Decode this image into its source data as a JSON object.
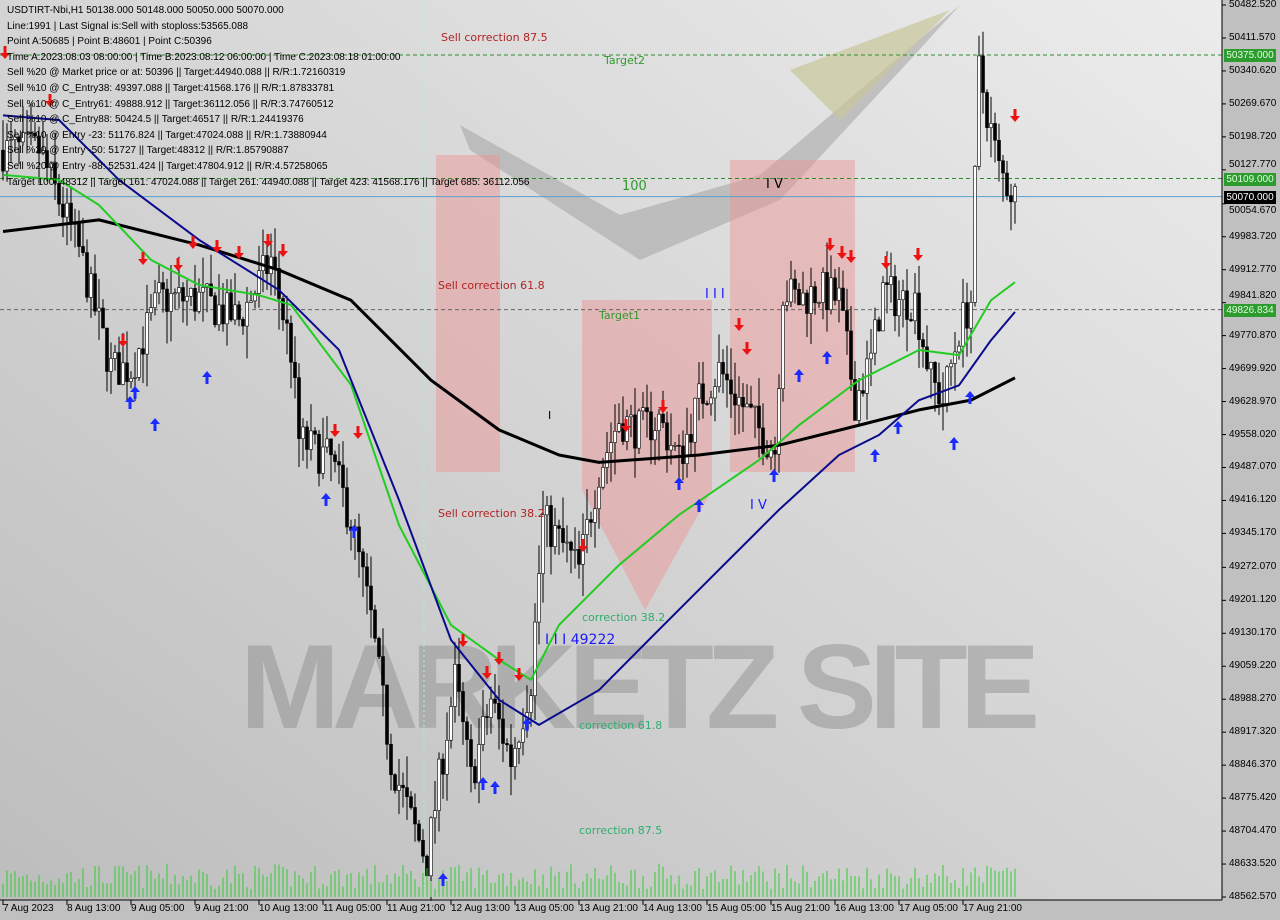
{
  "header": {
    "symbol_line": "USDTIRT-Nbi,H1  50138.000 50148.000 50050.000 50070.000",
    "lines": [
      "Line:1991 | Last Signal is:Sell with stoploss:53565.088",
      "Point A:50685 | Point B:48601 | Point C:50396",
      "Time A:2023.08.03 08:00:00 | Time B:2023.08.12 06:00:00 | Time C:2023.08.18 01:00:00",
      "Sell %20 @ Market price or at: 50396 || Target:44940.088 || R/R:1.72160319",
      "Sell %10 @ C_Entry38: 49397.088 || Target:41568.176 || R/R:1.87833781",
      "Sell %10 @ C_Entry61: 49888.912 || Target:36112.056 || R/R:3.74760512",
      "Sell %10 @ C_Entry88: 50424.5 || Target:46517 || R/R:1.24419376",
      "Sell %10 @ Entry -23: 51176.824 || Target:47024.088 || R/R:1.73880944",
      "Sell %20 @ Entry -50: 51727 || Target:48312 || R/R:1.85790887",
      "Sell %20 @ Entry -88: 52531.424 || Target:47804.912 || R/R:4.57258065",
      "Target 100: 48312 || Target 161: 47024.088 || Target 261: 44940.088 || Target 423: 41568.176 || Target 685: 36112.056"
    ]
  },
  "chart_data": {
    "type": "candlestick",
    "timeframe": "H1",
    "ylim": [
      48562.57,
      50482.52
    ],
    "y_ticks": [
      "50482.520",
      "50411.570",
      "50340.620",
      "50269.670",
      "50198.720",
      "50127.770",
      "50054.670",
      "49983.720",
      "49912.770",
      "49841.820",
      "49770.870",
      "49699.920",
      "49628.970",
      "49558.020",
      "49487.070",
      "49416.120",
      "49345.170",
      "49272.070",
      "49201.120",
      "49130.170",
      "49059.220",
      "48988.270",
      "48917.320",
      "48846.370",
      "48775.420",
      "48704.470",
      "48633.520",
      "48562.570"
    ],
    "x_ticks": [
      {
        "label": "7 Aug 2023",
        "time": "2023-08-07T21:00"
      },
      {
        "label": "8 Aug 13:00",
        "time": "2023-08-08T13:00"
      },
      {
        "label": "9 Aug 05:00",
        "time": "2023-08-09T05:00"
      },
      {
        "label": "9 Aug 21:00",
        "time": "2023-08-09T21:00"
      },
      {
        "label": "10 Aug 13:00",
        "time": "2023-08-10T13:00"
      },
      {
        "label": "11 Aug 05:00",
        "time": "2023-08-11T05:00"
      },
      {
        "label": "11 Aug 21:00",
        "time": "2023-08-11T21:00"
      },
      {
        "label": "12 Aug 13:00",
        "time": "2023-08-12T13:00"
      },
      {
        "label": "13 Aug 05:00",
        "time": "2023-08-13T05:00"
      },
      {
        "label": "13 Aug 21:00",
        "time": "2023-08-13T21:00"
      },
      {
        "label": "14 Aug 13:00",
        "time": "2023-08-14T13:00"
      },
      {
        "label": "15 Aug 05:00",
        "time": "2023-08-15T05:00"
      },
      {
        "label": "15 Aug 21:00",
        "time": "2023-08-15T21:00"
      },
      {
        "label": "16 Aug 13:00",
        "time": "2023-08-16T13:00"
      },
      {
        "label": "17 Aug 05:00",
        "time": "2023-08-17T05:00"
      },
      {
        "label": "17 Aug 21:00",
        "time": "2023-08-17T21:00"
      }
    ],
    "price_path": [
      [
        "2023-08-07T21:00",
        50170
      ],
      [
        "2023-08-08T06:00",
        50170
      ],
      [
        "2023-08-08T16:00",
        49955
      ],
      [
        "2023-08-09T00:00",
        49700
      ],
      [
        "2023-08-09T05:00",
        49700
      ],
      [
        "2023-08-09T12:00",
        49850
      ],
      [
        "2023-08-09T22:00",
        49850
      ],
      [
        "2023-08-10T08:00",
        49805
      ],
      [
        "2023-08-10T16:00",
        49934
      ],
      [
        "2023-08-10T21:00",
        49740
      ],
      [
        "2023-08-10T23:00",
        49546
      ],
      [
        "2023-08-11T07:00",
        49503
      ],
      [
        "2023-08-11T12:00",
        49374
      ],
      [
        "2023-08-11T17:00",
        49160
      ],
      [
        "2023-08-11T22:00",
        48858
      ],
      [
        "2023-08-12T03:00",
        48728
      ],
      [
        "2023-08-12T07:00",
        48642
      ],
      [
        "2023-08-12T10:00",
        48815
      ],
      [
        "2023-08-12T14:00",
        49030
      ],
      [
        "2023-08-12T18:00",
        48815
      ],
      [
        "2023-08-12T23:00",
        48987
      ],
      [
        "2023-08-13T04:00",
        48858
      ],
      [
        "2023-08-13T09:00",
        49030
      ],
      [
        "2023-08-13T12:00",
        49374
      ],
      [
        "2023-08-13T16:00",
        49331
      ],
      [
        "2023-08-13T21:00",
        49267
      ],
      [
        "2023-08-14T02:00",
        49482
      ],
      [
        "2023-08-14T07:00",
        49590
      ],
      [
        "2023-08-14T12:00",
        49568
      ],
      [
        "2023-08-14T17:00",
        49590
      ],
      [
        "2023-08-14T22:00",
        49503
      ],
      [
        "2023-08-15T03:00",
        49632
      ],
      [
        "2023-08-15T08:00",
        49697
      ],
      [
        "2023-08-15T13:00",
        49632
      ],
      [
        "2023-08-15T18:00",
        49568
      ],
      [
        "2023-08-15T22:00",
        49525
      ],
      [
        "2023-08-16T00:00",
        49869
      ],
      [
        "2023-08-16T04:00",
        49847
      ],
      [
        "2023-08-16T09:00",
        49869
      ],
      [
        "2023-08-16T14:00",
        49847
      ],
      [
        "2023-08-16T18:00",
        49632
      ],
      [
        "2023-08-16T22:00",
        49718
      ],
      [
        "2023-08-17T01:00",
        49869
      ],
      [
        "2023-08-17T05:00",
        49847
      ],
      [
        "2023-08-17T09:00",
        49847
      ],
      [
        "2023-08-17T13:00",
        49675
      ],
      [
        "2023-08-17T16:00",
        49632
      ],
      [
        "2023-08-17T20:00",
        49783
      ],
      [
        "2023-08-17T23:00",
        49847
      ],
      [
        "2023-08-18T01:00",
        50342
      ],
      [
        "2023-08-18T04:00",
        50213
      ],
      [
        "2023-08-18T06:00",
        50127
      ],
      [
        "2023-08-18T10:00",
        50070
      ]
    ],
    "ma_series": [
      {
        "color": "#000000",
        "points": [
          [
            "2023-08-07T21:00",
            49995
          ],
          [
            "2023-08-08T21:00",
            50020
          ],
          [
            "2023-08-09T22:00",
            49966
          ],
          [
            "2023-08-10T18:00",
            49912
          ],
          [
            "2023-08-11T12:00",
            49847
          ],
          [
            "2023-08-12T08:00",
            49675
          ],
          [
            "2023-08-13T01:00",
            49568
          ],
          [
            "2023-08-13T16:00",
            49514
          ],
          [
            "2023-08-14T02:00",
            49498
          ],
          [
            "2023-08-15T03:00",
            49514
          ],
          [
            "2023-08-15T23:00",
            49535
          ],
          [
            "2023-08-16T19:00",
            49578
          ],
          [
            "2023-08-17T10:00",
            49611
          ],
          [
            "2023-08-17T23:00",
            49632
          ],
          [
            "2023-08-18T10:00",
            49680
          ]
        ]
      },
      {
        "color": "#22cc22",
        "points": [
          [
            "2023-08-07T21:00",
            50117
          ],
          [
            "2023-08-08T11:00",
            50106
          ],
          [
            "2023-08-08T21:00",
            50052
          ],
          [
            "2023-08-09T10:00",
            49934
          ],
          [
            "2023-08-09T22:00",
            49880
          ],
          [
            "2023-08-10T13:00",
            49858
          ],
          [
            "2023-08-10T21:00",
            49837
          ],
          [
            "2023-08-11T12:00",
            49665
          ],
          [
            "2023-08-12T00:00",
            49363
          ],
          [
            "2023-08-12T13:00",
            49148
          ],
          [
            "2023-08-13T01:00",
            49073
          ],
          [
            "2023-08-13T09:00",
            49030
          ],
          [
            "2023-08-13T16:00",
            49148
          ],
          [
            "2023-08-14T07:00",
            49277
          ],
          [
            "2023-08-14T22:00",
            49385
          ],
          [
            "2023-08-15T18:00",
            49503
          ],
          [
            "2023-08-16T04:00",
            49578
          ],
          [
            "2023-08-16T19:00",
            49675
          ],
          [
            "2023-08-17T10:00",
            49740
          ],
          [
            "2023-08-17T20:00",
            49729
          ],
          [
            "2023-08-18T04:00",
            49847
          ],
          [
            "2023-08-18T10:00",
            49886
          ]
        ]
      },
      {
        "color": "#0a0a8c",
        "points": [
          [
            "2023-08-07T21:00",
            50245
          ],
          [
            "2023-08-08T11:00",
            50235
          ],
          [
            "2023-08-09T02:00",
            50106
          ],
          [
            "2023-08-09T22:00",
            49977
          ],
          [
            "2023-08-10T18:00",
            49869
          ],
          [
            "2023-08-11T09:00",
            49740
          ],
          [
            "2023-08-12T00:00",
            49417
          ],
          [
            "2023-08-12T13:00",
            49116
          ],
          [
            "2023-08-13T01:00",
            48987
          ],
          [
            "2023-08-13T11:00",
            48933
          ],
          [
            "2023-08-14T02:00",
            49008
          ],
          [
            "2023-08-14T17:00",
            49138
          ],
          [
            "2023-08-15T08:00",
            49267
          ],
          [
            "2023-08-15T23:00",
            49396
          ],
          [
            "2023-08-16T14:00",
            49514
          ],
          [
            "2023-08-17T00:00",
            49557
          ],
          [
            "2023-08-17T10:00",
            49632
          ],
          [
            "2023-08-17T20:00",
            49664
          ],
          [
            "2023-08-18T04:00",
            49761
          ],
          [
            "2023-08-18T10:00",
            49822
          ]
        ]
      }
    ],
    "levels": [
      {
        "price": 50375.0,
        "label": "50375.000",
        "color": "#2e8b2e",
        "style": "dashed",
        "tag_bg": "#2e9b2e"
      },
      {
        "price": 50109.0,
        "label": "50109.000",
        "color": "#2e8b2e",
        "style": "dashed",
        "tag_bg": "#2e9b2e"
      },
      {
        "price": 50070.0,
        "label": "50070.000",
        "color": "#5aa0d0",
        "style": "solid",
        "tag_bg": "#000000"
      },
      {
        "price": 49826.834,
        "label": "49826.834",
        "color": "#666666",
        "style": "dashed",
        "tag_bg": "#2e9b2e"
      }
    ],
    "annotations": [
      {
        "text": "Sell correction 87.5",
        "color": "#b22222"
      },
      {
        "text": "Target2",
        "color": "#2e9b2e"
      },
      {
        "text": "100",
        "color": "#2e9b2e"
      },
      {
        "text": "I V",
        "color": "#000000"
      },
      {
        "text": "Sell correction 61.8",
        "color": "#b22222"
      },
      {
        "text": "Target1",
        "color": "#2e9b2e"
      },
      {
        "text": "I I I",
        "color": "#1a1aff"
      },
      {
        "text": "I",
        "color": "#000000"
      },
      {
        "text": "I V",
        "color": "#1a1aff"
      },
      {
        "text": "Sell correction 38.2",
        "color": "#b22222"
      },
      {
        "text": "correction 38.2",
        "color": "#2eae6e"
      },
      {
        "text": "I I I  49222",
        "color": "#1a1aff"
      },
      {
        "text": "correction 61.8",
        "color": "#2eae6e"
      },
      {
        "text": "correction 87.5",
        "color": "#2eae6e"
      }
    ],
    "watermark": "MARKETZ SITE"
  }
}
